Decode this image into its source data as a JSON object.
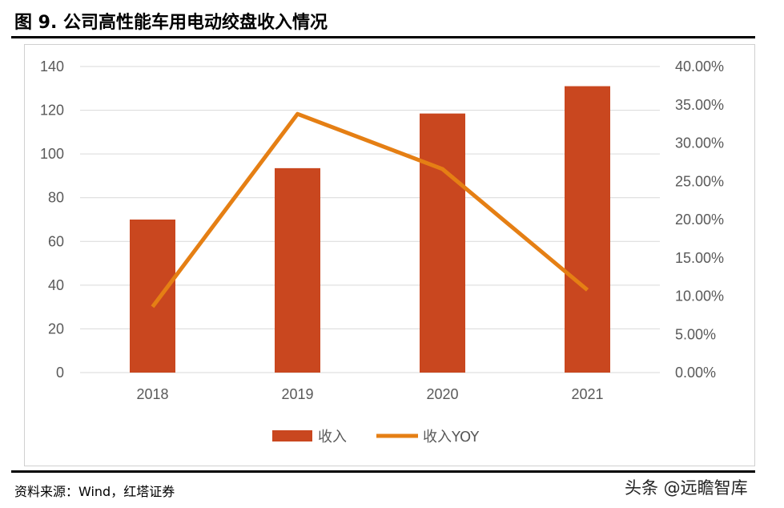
{
  "title": "图 9. 公司高性能车用电动绞盘收入情况",
  "source": "资料来源：Wind，红塔证券",
  "watermark": "头条 @远瞻智库",
  "chart_data": {
    "type": "bar+line",
    "categories": [
      "2018",
      "2019",
      "2020",
      "2021"
    ],
    "series": [
      {
        "name": "收入",
        "type": "bar",
        "axis": "left",
        "color": "#C9471F",
        "values": [
          70,
          93.5,
          118.5,
          131
        ]
      },
      {
        "name": "收入YOY",
        "type": "line",
        "axis": "right",
        "color": "#E57F14",
        "values": [
          8.6,
          33.8,
          26.6,
          10.8
        ]
      }
    ],
    "y_left": {
      "min": 0,
      "max": 140,
      "ticks": [
        "0",
        "20",
        "40",
        "60",
        "80",
        "100",
        "120",
        "140"
      ]
    },
    "y_right": {
      "min": 0,
      "max": 40,
      "ticks": [
        "0.00%",
        "5.00%",
        "10.00%",
        "15.00%",
        "20.00%",
        "25.00%",
        "30.00%",
        "35.00%",
        "40.00%"
      ]
    },
    "grid": true,
    "legend": "bottom"
  }
}
